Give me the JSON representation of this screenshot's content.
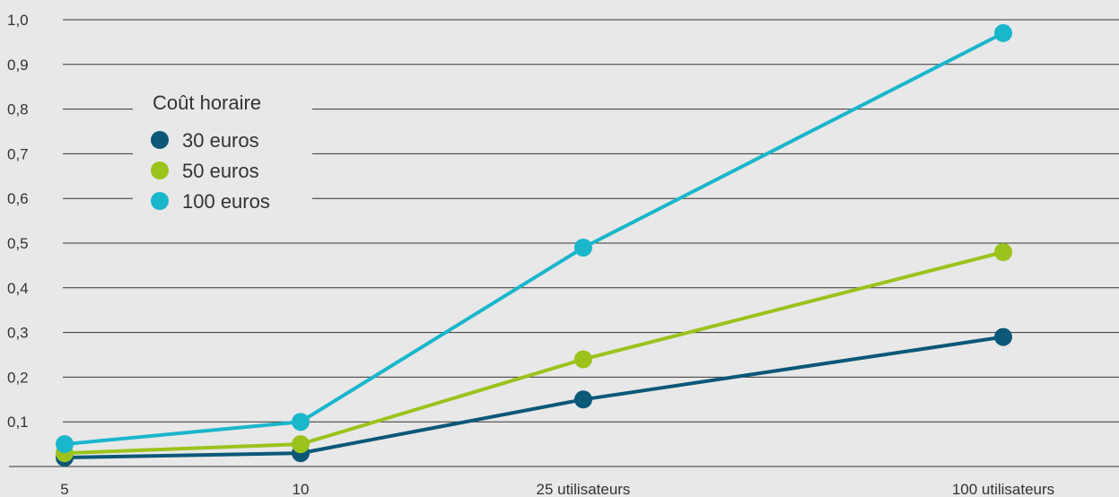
{
  "chart_data": {
    "type": "line",
    "categories": [
      "5",
      "10",
      "25 utilisateurs",
      "100 utilisateurs"
    ],
    "y_ticks": [
      "1,0",
      "0,9",
      "0,8",
      "0,7",
      "0,6",
      "0,5",
      "0,4",
      "0,3",
      "0,2",
      "0,1"
    ],
    "ylim": [
      0,
      1.0
    ],
    "grid": true,
    "legend": {
      "title": "Coût horaire",
      "placement": "top-left"
    },
    "series": [
      {
        "name": "30 euros",
        "color": "#0b5878",
        "values": [
          0.02,
          0.03,
          0.15,
          0.29
        ]
      },
      {
        "name": "50 euros",
        "color": "#9bc31c",
        "values": [
          0.03,
          0.05,
          0.24,
          0.48
        ]
      },
      {
        "name": "100 euros",
        "color": "#1ab6cc",
        "values": [
          0.05,
          0.1,
          0.49,
          0.97
        ]
      }
    ]
  }
}
